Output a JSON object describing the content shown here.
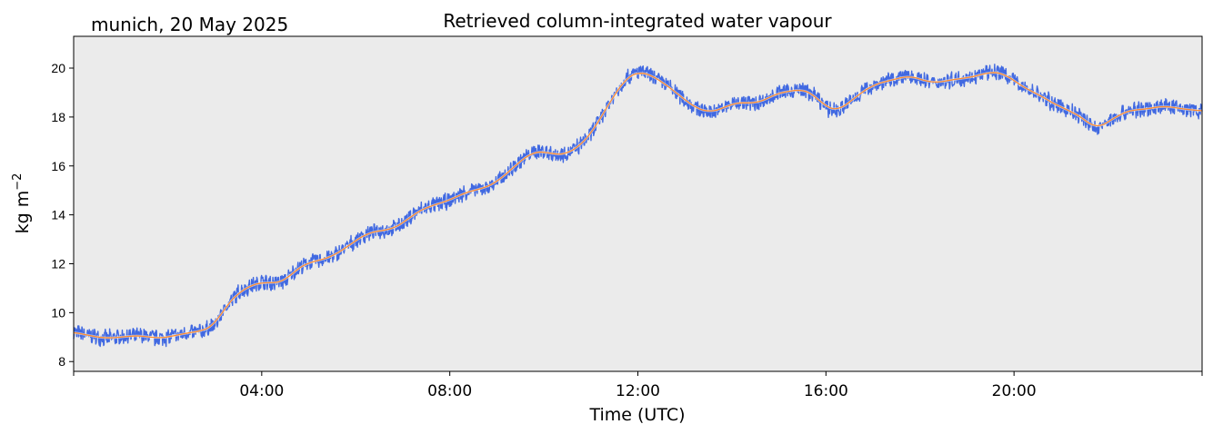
{
  "chart_data": {
    "type": "line",
    "subtitle": "munich, 20 May 2025",
    "title": "Retrieved column-integrated water vapour",
    "xlabel": "Time (UTC)",
    "ylabel_main": "kg m",
    "ylabel_sup": "−2",
    "xlim": [
      0,
      24
    ],
    "ylim": [
      7.6,
      21.3
    ],
    "grid": false,
    "background": "#ebebeb",
    "x_ticks": [
      {
        "value": 0,
        "label": ""
      },
      {
        "value": 4,
        "label": "04:00"
      },
      {
        "value": 8,
        "label": "08:00"
      },
      {
        "value": 12,
        "label": "12:00"
      },
      {
        "value": 16,
        "label": "16:00"
      },
      {
        "value": 20,
        "label": "20:00"
      },
      {
        "value": 24,
        "label": ""
      }
    ],
    "y_ticks": [
      8,
      10,
      12,
      14,
      16,
      18,
      20
    ],
    "series": [
      {
        "color": "#4169e1",
        "style": "noisy-band",
        "x": [
          0,
          0.25,
          0.5,
          0.75,
          1.0,
          1.25,
          1.5,
          1.75,
          2.0,
          2.25,
          2.5,
          2.75,
          3.0,
          3.25,
          3.5,
          3.75,
          4.0,
          4.25,
          4.5,
          4.75,
          5.0,
          5.25,
          5.5,
          5.75,
          6.0,
          6.25,
          6.5,
          6.75,
          7.0,
          7.25,
          7.5,
          7.75,
          8.0,
          8.25,
          8.5,
          8.75,
          9.0,
          9.25,
          9.5,
          9.75,
          10.0,
          10.25,
          10.5,
          10.75,
          11.0,
          11.25,
          11.5,
          11.75,
          12.0,
          12.25,
          12.5,
          12.75,
          13.0,
          13.25,
          13.5,
          13.75,
          14.0,
          14.25,
          14.5,
          14.75,
          15.0,
          15.25,
          15.5,
          15.75,
          16.0,
          16.25,
          16.5,
          16.75,
          17.0,
          17.25,
          17.5,
          17.75,
          18.0,
          18.25,
          18.5,
          18.75,
          19.0,
          19.25,
          19.5,
          19.75,
          20.0,
          20.25,
          20.5,
          20.75,
          21.0,
          21.25,
          21.5,
          21.75,
          22.0,
          22.25,
          22.5,
          22.75,
          23.0,
          23.25,
          23.5,
          23.75,
          24.0
        ],
        "y": [
          9.2,
          9.1,
          9.0,
          8.95,
          9.0,
          9.05,
          9.05,
          8.95,
          9.0,
          9.1,
          9.2,
          9.25,
          9.5,
          10.3,
          10.8,
          11.1,
          11.25,
          11.2,
          11.3,
          11.8,
          12.05,
          12.15,
          12.3,
          12.6,
          12.95,
          13.25,
          13.35,
          13.4,
          13.65,
          14.05,
          14.3,
          14.45,
          14.6,
          14.85,
          15.0,
          15.1,
          15.35,
          15.75,
          16.2,
          16.55,
          16.6,
          16.45,
          16.5,
          16.8,
          17.3,
          18.1,
          18.9,
          19.6,
          19.85,
          19.75,
          19.45,
          19.1,
          18.7,
          18.35,
          18.2,
          18.3,
          18.55,
          18.6,
          18.55,
          18.75,
          19.0,
          19.05,
          19.15,
          18.9,
          18.4,
          18.25,
          18.6,
          19.0,
          19.3,
          19.45,
          19.55,
          19.7,
          19.55,
          19.4,
          19.45,
          19.55,
          19.6,
          19.7,
          19.85,
          19.8,
          19.5,
          19.15,
          18.95,
          18.65,
          18.4,
          18.2,
          17.9,
          17.5,
          17.8,
          18.1,
          18.3,
          18.3,
          18.4,
          18.45,
          18.35,
          18.3,
          18.25
        ]
      },
      {
        "color": "#ff8c2e",
        "style": "smooth",
        "x": [
          0,
          0.25,
          0.5,
          0.75,
          1.0,
          1.25,
          1.5,
          1.75,
          2.0,
          2.25,
          2.5,
          2.75,
          3.0,
          3.25,
          3.5,
          3.75,
          4.0,
          4.25,
          4.5,
          4.75,
          5.0,
          5.25,
          5.5,
          5.75,
          6.0,
          6.25,
          6.5,
          6.75,
          7.0,
          7.25,
          7.5,
          7.75,
          8.0,
          8.25,
          8.5,
          8.75,
          9.0,
          9.25,
          9.5,
          9.75,
          10.0,
          10.25,
          10.5,
          10.75,
          11.0,
          11.25,
          11.5,
          11.75,
          12.0,
          12.25,
          12.5,
          12.75,
          13.0,
          13.25,
          13.5,
          13.75,
          14.0,
          14.25,
          14.5,
          14.75,
          15.0,
          15.25,
          15.5,
          15.75,
          16.0,
          16.25,
          16.5,
          16.75,
          17.0,
          17.25,
          17.5,
          17.75,
          18.0,
          18.25,
          18.5,
          18.75,
          19.0,
          19.25,
          19.5,
          19.75,
          20.0,
          20.25,
          20.5,
          20.75,
          21.0,
          21.25,
          21.5,
          21.75,
          22.0,
          22.25,
          22.5,
          22.75,
          23.0,
          23.25,
          23.5,
          23.75,
          24.0
        ],
        "y": [
          9.2,
          9.1,
          9.0,
          8.95,
          9.0,
          9.05,
          9.05,
          8.95,
          9.0,
          9.1,
          9.2,
          9.25,
          9.5,
          10.3,
          10.8,
          11.1,
          11.25,
          11.2,
          11.3,
          11.8,
          12.05,
          12.15,
          12.3,
          12.6,
          12.95,
          13.25,
          13.35,
          13.4,
          13.65,
          14.05,
          14.3,
          14.45,
          14.6,
          14.85,
          15.0,
          15.1,
          15.35,
          15.75,
          16.2,
          16.55,
          16.6,
          16.45,
          16.5,
          16.8,
          17.3,
          18.1,
          18.9,
          19.6,
          19.85,
          19.75,
          19.45,
          19.1,
          18.7,
          18.35,
          18.2,
          18.3,
          18.55,
          18.6,
          18.55,
          18.75,
          19.0,
          19.05,
          19.15,
          18.9,
          18.4,
          18.25,
          18.6,
          19.0,
          19.3,
          19.45,
          19.55,
          19.7,
          19.55,
          19.4,
          19.45,
          19.55,
          19.6,
          19.7,
          19.85,
          19.8,
          19.5,
          19.15,
          18.95,
          18.65,
          18.4,
          18.2,
          17.9,
          17.5,
          17.8,
          18.1,
          18.3,
          18.3,
          18.4,
          18.45,
          18.35,
          18.3,
          18.25
        ]
      }
    ]
  }
}
